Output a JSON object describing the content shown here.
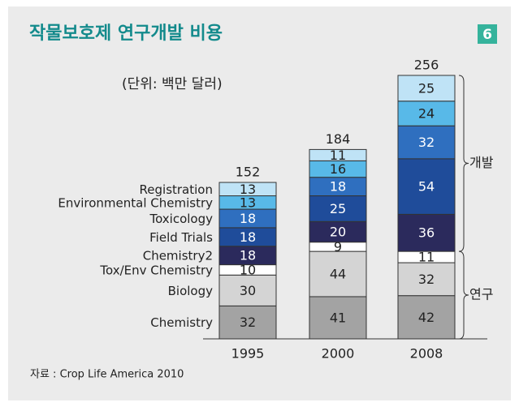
{
  "chart_data": {
    "type": "stacked_bar",
    "title": "작물보호제 연구개발 비용",
    "badge": "6",
    "subtitle": "(단위: 백만 달러)",
    "source": "자료 : Crop Life America 2010",
    "categories": [
      "1995",
      "2000",
      "2008"
    ],
    "totals": [
      152,
      184,
      256
    ],
    "series": [
      {
        "name": "Chemistry",
        "color": "#a3a3a3",
        "values": [
          32,
          41,
          42
        ]
      },
      {
        "name": "Biology",
        "color": "#d4d4d4",
        "values": [
          30,
          44,
          32
        ]
      },
      {
        "name": "Tox/Env Chemistry",
        "color": "#ffffff",
        "values": [
          10,
          9,
          11
        ]
      },
      {
        "name": "Chemistry2",
        "color": "#2b2a5c",
        "values": [
          18,
          20,
          36
        ]
      },
      {
        "name": "Field Trials",
        "color": "#1f4c9a",
        "values": [
          18,
          25,
          54
        ]
      },
      {
        "name": "Toxicology",
        "color": "#2f6fbf",
        "values": [
          18,
          18,
          32
        ]
      },
      {
        "name": "Environmental Chemistry",
        "color": "#58b9e8",
        "values": [
          13,
          16,
          24
        ]
      },
      {
        "name": "Registration",
        "color": "#bfe3f6",
        "values": [
          13,
          11,
          25
        ]
      }
    ],
    "annotations": [
      "개발",
      "연구"
    ]
  }
}
